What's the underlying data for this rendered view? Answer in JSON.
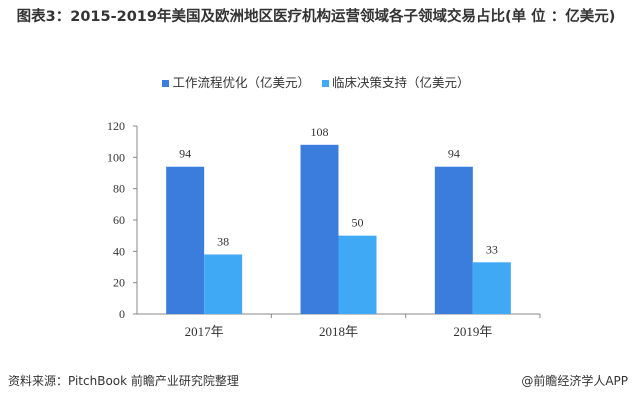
{
  "title": "图表3：2015-2019年美国及欧洲地区医疗机构运营领域各子领域交易占比(单 位 ：亿美元)",
  "source": "资料来源：PitchBook 前瞻产业研究院整理",
  "credit": "@前瞻经济学人APP",
  "chart_data": {
    "type": "bar",
    "title": "",
    "categories": [
      "2017年",
      "2018年",
      "2019年"
    ],
    "series": [
      {
        "name": "工作流程优化（亿美元）",
        "values": [
          94,
          108,
          94
        ],
        "color": "#3b7ddd"
      },
      {
        "name": "临床决策支持（亿美元）",
        "values": [
          38,
          50,
          33
        ],
        "color": "#3fa9f5"
      }
    ],
    "ylim": [
      0,
      120
    ],
    "yticks": [
      0,
      20,
      40,
      60,
      80,
      100,
      120
    ],
    "grid": false,
    "legend": "top"
  }
}
